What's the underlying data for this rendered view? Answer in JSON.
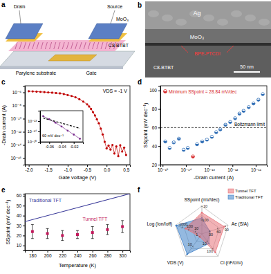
{
  "chart_data": [
    {
      "type": "schematic",
      "panel_label": "a",
      "labels": [
        "Drain",
        "Source",
        "MoO₃",
        "C8-BTBT",
        "Parylene substrate",
        "Gate"
      ]
    },
    {
      "type": "micrograph",
      "panel_label": "b",
      "labels": [
        "Ag",
        "MoO₃",
        "BPE-PTCDI",
        "C8-BTBT"
      ],
      "scale_bar": "50 nm"
    },
    {
      "type": "line",
      "panel_label": "c",
      "x_label": "Gate voltage (V)",
      "y_label": "-Drain current (A)",
      "annotations": [
        "VDS = -1 V"
      ],
      "log": "y",
      "x": [
        -2.0,
        -1.9,
        -1.8,
        -1.7,
        -1.6,
        -1.5,
        -1.4,
        -1.3,
        -1.2,
        -1.1,
        -1.0,
        -0.9,
        -0.8,
        -0.7,
        -0.6,
        -0.5,
        -0.45,
        -0.4,
        -0.35,
        -0.3,
        -0.25,
        -0.2,
        -0.15,
        -0.1,
        -0.05,
        0.0,
        0.05,
        0.1,
        0.15,
        0.2,
        0.25,
        0.3,
        0.35,
        0.4,
        0.45,
        0.5
      ],
      "series": [
        {
          "color": "#c00000",
          "marker": "circle",
          "values": [
            1.5e-06,
            1.4e-06,
            1.3e-06,
            1.2e-06,
            1.1e-06,
            1e-06,
            9e-07,
            8e-07,
            7e-07,
            5.5e-07,
            4e-07,
            2.8e-07,
            1.8e-07,
            9e-08,
            4e-08,
            1.5e-08,
            7e-09,
            3e-09,
            1e-09,
            3e-10,
            8e-11,
            2e-11,
            3e-12,
            4e-13,
            3e-14,
            3e-15,
            8e-15,
            2e-15,
            1e-14,
            5e-16,
            6e-15,
            2e-16,
            9e-15,
            1e-15,
            4e-15,
            3e-16
          ]
        }
      ],
      "xlim": [
        -2.1,
        0.6
      ],
      "xticks": [
        {
          "value": -2.0,
          "label": "-2.0"
        },
        -1.5,
        {
          "value": -1.0,
          "label": "-1.0"
        },
        -0.5,
        {
          "value": 0.0,
          "label": "0.0"
        },
        0.5
      ],
      "ylim": [
        1e-17,
        1e-05
      ],
      "yticks": [
        {
          "value": 1e-16,
          "label": "10⁻¹⁶"
        },
        {
          "value": 1e-14,
          "label": "10⁻¹⁴"
        },
        {
          "value": 1e-12,
          "label": "10⁻¹²"
        },
        {
          "value": 1e-10,
          "label": "10⁻¹⁰"
        },
        {
          "value": 1e-08,
          "label": "10⁻⁸"
        },
        {
          "value": 1e-06,
          "label": "10⁻⁶"
        }
      ]
    },
    {
      "type": "line",
      "annotations": [
        "60 mV dec⁻¹"
      ],
      "log": "y",
      "series": [
        {
          "color": "#7b2c8f",
          "marker": "circle",
          "x": [
            -0.07,
            -0.06,
            -0.05,
            -0.04,
            -0.03,
            -0.02,
            -0.01
          ],
          "values": [
            3e-13,
            1.5e-13,
            7e-14,
            3e-14,
            1.2e-14,
            5e-15,
            2e-15
          ]
        },
        {
          "color": "#000000",
          "line_style": "dashed",
          "x": [
            -0.07,
            -0.01
          ],
          "values": [
            2e-13,
            2e-14
          ]
        }
      ],
      "xlim": [
        -0.075,
        -0.005
      ],
      "xticks": [
        -0.06,
        -0.04,
        -0.02
      ],
      "ylim": [
        1e-15,
        1e-12
      ],
      "yticks": [
        {
          "value": 1e-15,
          "label": "10⁻¹⁵"
        },
        {
          "value": 1e-14,
          "label": "10⁻¹⁴"
        },
        {
          "value": 1e-13,
          "label": "10⁻¹³"
        }
      ]
    },
    {
      "type": "scatter",
      "panel_label": "d",
      "x_label": "-Drain current (A)",
      "y_label": "SSpoint (mV dec⁻¹)",
      "annotations": [
        "Minimum SSpoint = 28.84 mV/dec"
      ],
      "log": "x",
      "x": [
        1.3e-15,
        2e-15,
        3e-15,
        5e-15,
        8e-15,
        1.2e-14,
        2e-14,
        3e-14,
        5e-14,
        8e-14,
        1.3e-13,
        2e-13,
        3e-13,
        5e-13,
        8e-13,
        1.3e-12,
        2e-12,
        3e-12,
        5e-12,
        8e-12,
        1.3e-11,
        2e-11
      ],
      "series": [
        {
          "marker": "half-circle",
          "values": [
            45,
            38,
            44,
            48,
            36,
            38,
            28.84,
            42,
            45,
            47,
            50,
            55,
            58,
            63,
            66,
            70,
            75,
            78,
            82,
            86,
            90,
            96
          ],
          "colors": [
            "#2f6db5",
            "#2f6db5",
            "#2f6db5",
            "#2f6db5",
            "#2f6db5",
            "#2f6db5",
            "#d62728",
            "#2f6db5",
            "#2f6db5",
            "#2f6db5",
            "#2f6db5",
            "#2f6db5",
            "#2f6db5",
            "#2f6db5",
            "#2f6db5",
            "#2f6db5",
            "#2f6db5",
            "#2f6db5",
            "#2f6db5",
            "#2f6db5",
            "#2f6db5",
            "#2f6db5"
          ]
        }
      ],
      "reference_lines": [
        {
          "value": 60,
          "label": "Boltzmann limit",
          "line_style": "dashed"
        }
      ],
      "xlim": [
        8e-16,
        3e-11
      ],
      "xticks": [
        {
          "value": 1e-15,
          "label": "10⁻¹⁵"
        },
        {
          "value": 1e-14,
          "label": "10⁻¹⁴"
        },
        {
          "value": 1e-13,
          "label": "10⁻¹³"
        },
        {
          "value": 1e-12,
          "label": "10⁻¹²"
        },
        {
          "value": 1e-11,
          "label": "10⁻¹¹"
        }
      ],
      "ylim": [
        20,
        105
      ],
      "yticks": [
        20,
        40,
        60,
        80,
        100
      ]
    },
    {
      "type": "line",
      "panel_label": "e",
      "x_label": "Temperature (K)",
      "y_label": "SSpoint (mV dec⁻¹)",
      "series": [
        {
          "name": "Traditional TFT",
          "type": "line",
          "color": "#3b3b9a",
          "x": [
            170,
            310
          ],
          "values": [
            34,
            62
          ]
        },
        {
          "name": "Tunnel TFT",
          "type": "scatter",
          "color": "#c2185b",
          "marker": "square",
          "x": [
            180,
            200,
            220,
            240,
            260,
            280,
            300
          ],
          "values": [
            24,
            22,
            20,
            21,
            23,
            26,
            29
          ],
          "errors": [
            7,
            5,
            5,
            4,
            6,
            5,
            6
          ]
        }
      ],
      "xlim": [
        170,
        310
      ],
      "xticks": [
        180,
        200,
        220,
        240,
        260,
        280,
        300
      ],
      "ylim": [
        5,
        62
      ],
      "yticks": [
        10,
        20,
        30,
        40,
        50,
        60
      ]
    },
    {
      "type": "radar",
      "panel_label": "f",
      "legend": "top-right",
      "axes": [
        {
          "label": "SSpoint (mV/dec)",
          "lim": [
            1000,
            10
          ],
          "log": true,
          "ticks": [
            100,
            10
          ]
        },
        {
          "label": "Ae (S/A)",
          "lim": [
            0,
            100
          ],
          "ticks": [
            30,
            60,
            90
          ]
        },
        {
          "label": "Ci (nF/cm²)",
          "lim": [
            1,
            1000
          ],
          "log": true,
          "ticks": [
            10,
            100
          ]
        },
        {
          "label": "VDS (V)",
          "lim": [
            0.5,
            100
          ],
          "log": true,
          "ticks": [
            1,
            10
          ]
        },
        {
          "label": "Log (Ion/Ioff)",
          "lim": [
            1,
            10000
          ],
          "log": true,
          "ticks": [
            10,
            100,
            1000
          ]
        }
      ],
      "series": [
        {
          "name": "Tunnel TFT",
          "color": "#e8737a",
          "values": [
            28.84,
            85,
            300,
            1,
            300
          ]
        },
        {
          "name": "Traditional TFT",
          "color": "#3d7fc6",
          "values": [
            70,
            30,
            20,
            60,
            8000
          ]
        }
      ]
    }
  ]
}
